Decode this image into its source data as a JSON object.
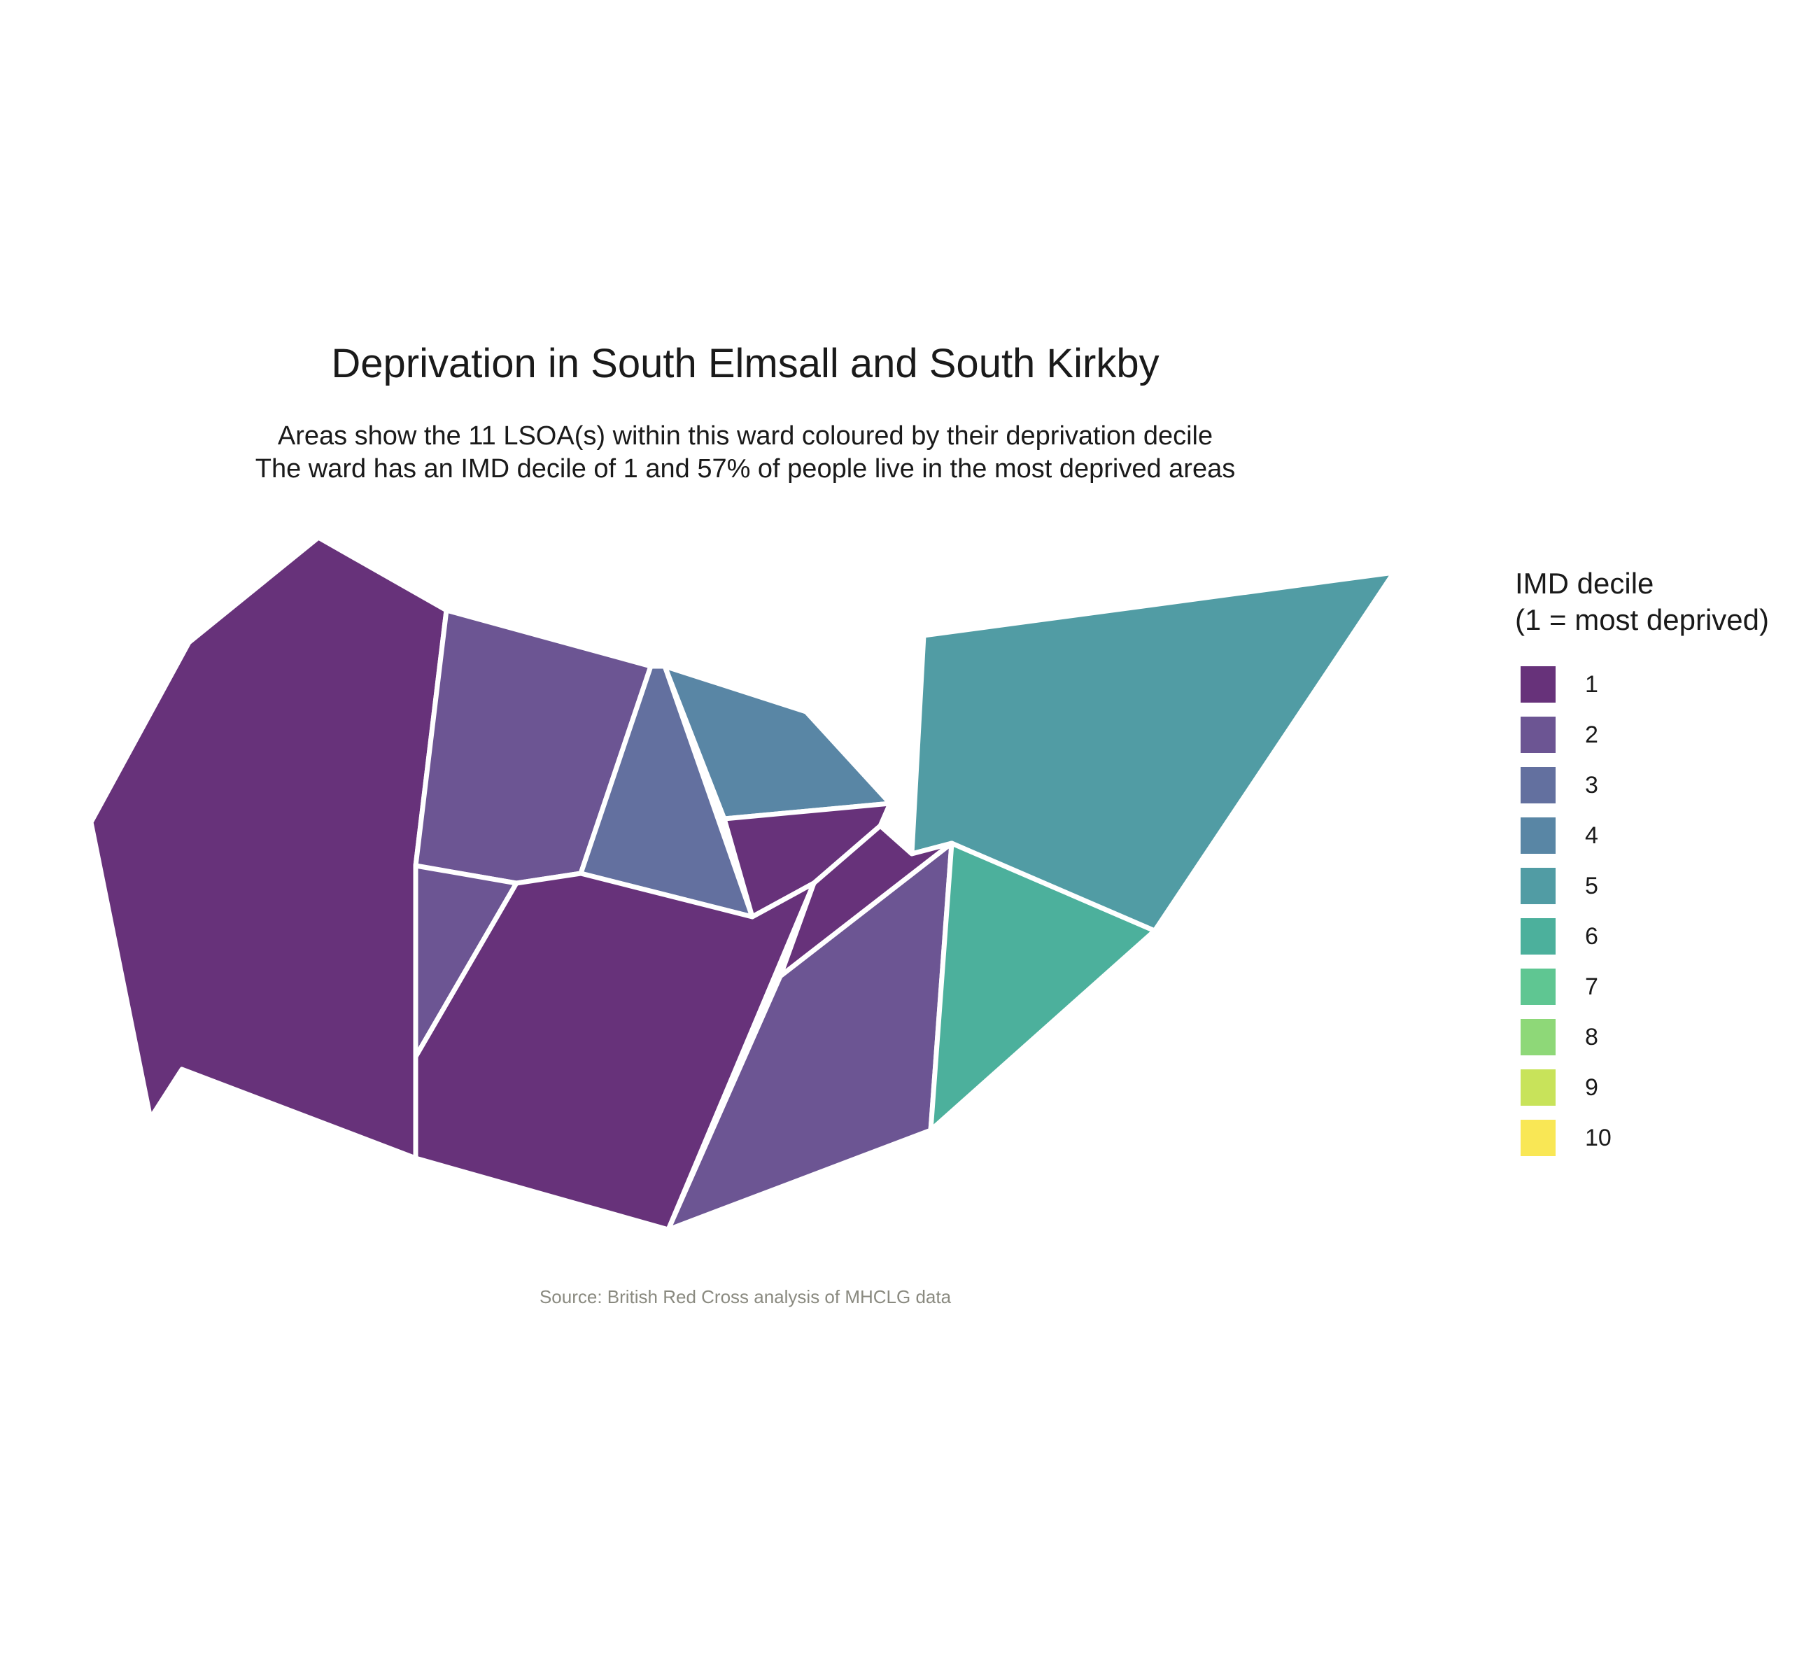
{
  "title": "Deprivation in South Elmsall and South Kirkby",
  "subtitle": {
    "line1": "Areas show the 11 LSOA(s) within this ward coloured by their deprivation decile",
    "line2": "The ward has an IMD decile of 1 and 57% of people live in the most deprived areas"
  },
  "caption": "Source: British Red Cross analysis of MHCLG data",
  "legend": {
    "title_line1": "IMD decile",
    "title_line2": "(1 = most deprived)",
    "items": [
      {
        "label": "1",
        "color": "#67327a"
      },
      {
        "label": "2",
        "color": "#6c5593"
      },
      {
        "label": "3",
        "color": "#63709f"
      },
      {
        "label": "4",
        "color": "#5986a5"
      },
      {
        "label": "5",
        "color": "#519ca4"
      },
      {
        "label": "6",
        "color": "#4cb09c"
      },
      {
        "label": "7",
        "color": "#5fc692"
      },
      {
        "label": "8",
        "color": "#8ed878"
      },
      {
        "label": "9",
        "color": "#c8e35a"
      },
      {
        "label": "10",
        "color": "#f9e755"
      }
    ]
  },
  "areas": [
    {
      "name": "lsoa-west-large",
      "decile": 1
    },
    {
      "name": "lsoa-north-center",
      "decile": 2
    },
    {
      "name": "lsoa-central-triangle",
      "decile": 3
    },
    {
      "name": "lsoa-north-east-small",
      "decile": 4
    },
    {
      "name": "lsoa-east-large",
      "decile": 5
    },
    {
      "name": "lsoa-small-center-east",
      "decile": 1
    },
    {
      "name": "lsoa-narrow-center",
      "decile": 1
    },
    {
      "name": "lsoa-west-small-triangle",
      "decile": 2
    },
    {
      "name": "lsoa-south-center",
      "decile": 1
    },
    {
      "name": "lsoa-south-east",
      "decile": 2
    },
    {
      "name": "lsoa-east-small",
      "decile": 6
    }
  ]
}
